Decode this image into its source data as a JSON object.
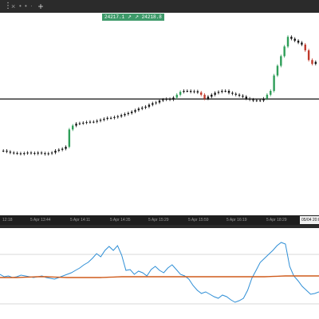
{
  "tabs": [
    {
      "label": "⋮",
      "close": "×"
    },
    {
      "more": "• • · • •"
    },
    {
      "add": "+"
    }
  ],
  "price_tags": [
    {
      "label": "24217.1",
      "icon": "arrow-icon"
    },
    {
      "label": "24218.8",
      "icon": "arrow-icon"
    }
  ],
  "time_axis": {
    "labels": [
      "12:18",
      "5 Apr 13:44",
      "5 Apr 14:11",
      "5 Apr 14:35",
      "5 Apr 15:29",
      "5 Apr 15:59",
      "5 Apr 16:19",
      "5 Apr 18:29"
    ],
    "cursor_label": "05/04 20:0"
  },
  "colors": {
    "up_candle": "#2e9e58",
    "down_candle": "#c0392b",
    "neutral_candle": "#111111",
    "price_line": "#111111",
    "tag_bg": "#3e9a6a",
    "indicator_fast": "#2f8fd6",
    "indicator_slow": "#cf5a1a"
  },
  "chart_data": [
    {
      "type": "candlestick",
      "title": "",
      "horizontal_line": 0.578,
      "ylim": [
        0,
        1
      ],
      "closes": [
        0.31,
        0.305,
        0.3,
        0.298,
        0.296,
        0.294,
        0.297,
        0.3,
        0.298,
        0.295,
        0.3,
        0.297,
        0.293,
        0.296,
        0.3,
        0.31,
        0.315,
        0.32,
        0.33,
        0.42,
        0.44,
        0.45,
        0.452,
        0.455,
        0.458,
        0.46,
        0.46,
        0.465,
        0.47,
        0.475,
        0.48,
        0.48,
        0.484,
        0.488,
        0.494,
        0.5,
        0.505,
        0.512,
        0.52,
        0.528,
        0.533,
        0.538,
        0.548,
        0.556,
        0.56,
        0.57,
        0.575,
        0.578,
        0.575,
        0.585,
        0.6,
        0.615,
        0.62,
        0.62,
        0.615,
        0.618,
        0.612,
        0.6,
        0.58,
        0.59,
        0.6,
        0.61,
        0.615,
        0.62,
        0.62,
        0.61,
        0.605,
        0.6,
        0.595,
        0.59,
        0.58,
        0.575,
        0.57,
        0.572,
        0.57,
        0.58,
        0.6,
        0.62,
        0.7,
        0.75,
        0.8,
        0.85,
        0.9,
        0.89,
        0.88,
        0.87,
        0.86,
        0.83,
        0.78,
        0.76,
        0.77
      ]
    },
    {
      "type": "line",
      "title": "",
      "ylim": [
        0,
        1
      ],
      "series": [
        {
          "values": [
            0.5,
            0.47,
            0.48,
            0.46,
            0.47,
            0.49,
            0.48,
            0.47,
            0.46,
            0.47,
            0.48,
            0.46,
            0.45,
            0.44,
            0.46,
            0.48,
            0.5,
            0.52,
            0.55,
            0.58,
            0.62,
            0.65,
            0.7,
            0.76,
            0.72,
            0.8,
            0.85,
            0.8,
            0.86,
            0.74,
            0.55,
            0.56,
            0.5,
            0.54,
            0.52,
            0.48,
            0.56,
            0.6,
            0.55,
            0.52,
            0.58,
            0.62,
            0.56,
            0.5,
            0.48,
            0.44,
            0.36,
            0.3,
            0.26,
            0.28,
            0.25,
            0.22,
            0.2,
            0.24,
            0.22,
            0.18,
            0.15,
            0.17,
            0.2,
            0.3,
            0.45,
            0.55,
            0.65,
            0.7,
            0.75,
            0.8,
            0.86,
            0.9,
            0.88,
            0.6,
            0.48,
            0.42,
            0.35,
            0.3,
            0.25,
            0.26,
            0.28
          ]
        },
        {
          "values": [
            0.46,
            0.46,
            0.46,
            0.46,
            0.46,
            0.462,
            0.464,
            0.466,
            0.468,
            0.47,
            0.47,
            0.47,
            0.468,
            0.466,
            0.464,
            0.462,
            0.46,
            0.46,
            0.46,
            0.46,
            0.46,
            0.46,
            0.46,
            0.46,
            0.46,
            0.462,
            0.464,
            0.466,
            0.468,
            0.47,
            0.47,
            0.47,
            0.47,
            0.47,
            0.47,
            0.47,
            0.47,
            0.47,
            0.47,
            0.47,
            0.47,
            0.47,
            0.47,
            0.47,
            0.47,
            0.47,
            0.47,
            0.47,
            0.47,
            0.47,
            0.47,
            0.47,
            0.47,
            0.47,
            0.47,
            0.47,
            0.47,
            0.47,
            0.47,
            0.47,
            0.47,
            0.47,
            0.47,
            0.47,
            0.472,
            0.474,
            0.476,
            0.478,
            0.48,
            0.48,
            0.48,
            0.48,
            0.48,
            0.48,
            0.48,
            0.48,
            0.48
          ]
        }
      ]
    }
  ]
}
